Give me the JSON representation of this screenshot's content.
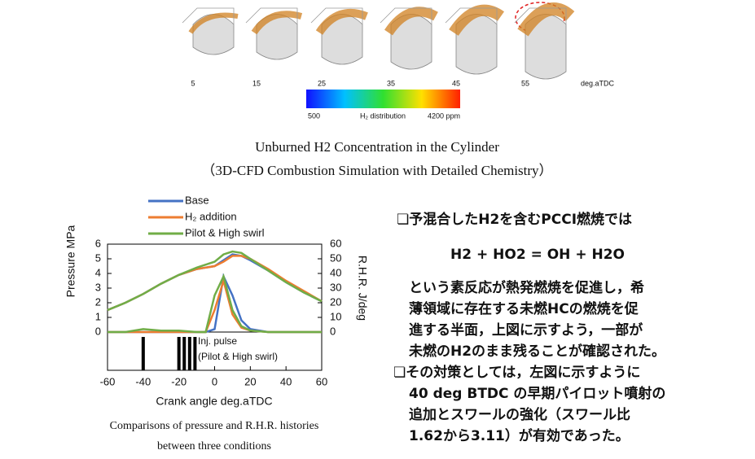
{
  "figure": {
    "crank_angles": [
      5,
      15,
      25,
      35,
      45,
      55
    ],
    "angle_unit": "deg.aTDC",
    "colorbar_min": "500",
    "colorbar_label": "H₂ distribution",
    "colorbar_max": "4200 ppm",
    "caption_line1": "Unburned H2 Concentration in the Cylinder",
    "caption_line2": "（3D-CFD Combustion Simulation with Detailed Chemistry）"
  },
  "chart_data": {
    "type": "line",
    "xlabel": "Crank angle deg.aTDC",
    "ylabel": "Pressure MPa",
    "y2label": "R.H.R. J/deg",
    "x": [
      -60,
      -50,
      -40,
      -30,
      -20,
      -10,
      -5,
      0,
      5,
      10,
      15,
      20,
      30,
      40,
      50,
      60
    ],
    "series": [
      {
        "name": "Base",
        "color": "#4472c4",
        "values": [
          1.5,
          2.0,
          2.6,
          3.3,
          3.9,
          4.3,
          4.4,
          4.5,
          4.9,
          5.3,
          5.2,
          4.9,
          4.2,
          3.4,
          2.7,
          2.1
        ],
        "rhr": [
          0,
          0,
          0,
          0,
          0,
          0,
          0,
          2,
          38,
          25,
          8,
          2,
          0,
          0,
          0,
          0
        ]
      },
      {
        "name": "H₂ addition",
        "color": "#ed7d31",
        "values": [
          1.5,
          2.0,
          2.6,
          3.3,
          3.9,
          4.3,
          4.4,
          4.5,
          4.8,
          5.2,
          5.2,
          5.0,
          4.3,
          3.5,
          2.8,
          2.1
        ],
        "rhr": [
          0,
          0,
          0,
          0,
          0,
          0,
          0,
          15,
          35,
          12,
          3,
          1,
          0,
          0,
          0,
          0
        ]
      },
      {
        "name": "Pilot & High swirl",
        "color": "#70ad47",
        "values": [
          1.5,
          2.0,
          2.6,
          3.3,
          3.9,
          4.4,
          4.6,
          4.8,
          5.3,
          5.5,
          5.4,
          5.0,
          4.2,
          3.4,
          2.7,
          2.1
        ],
        "rhr": [
          0,
          0,
          2,
          1,
          1,
          0,
          0,
          25,
          38,
          15,
          4,
          1,
          0,
          0,
          0,
          0
        ]
      }
    ],
    "xlim": [
      -60,
      60
    ],
    "xticks": [
      -60,
      -40,
      -20,
      0,
      20,
      40,
      60
    ],
    "ylim": [
      0,
      6
    ],
    "yticks": [
      0,
      1,
      2,
      3,
      4,
      5,
      6
    ],
    "y2lim": [
      0,
      60
    ],
    "y2ticks": [
      0,
      10,
      20,
      30,
      40,
      50,
      60
    ],
    "injection": {
      "label_line1": "Inj. pulse",
      "label_line2": "(Pilot & High swirl)",
      "x": [
        -40,
        -20,
        -17,
        -14,
        -11
      ]
    },
    "caption_line1": "Comparisons of pressure and R.H.R. histories",
    "caption_line2": "between three conditions"
  },
  "notes": {
    "bullet1": "❏予混合したH2を含むPCCI燃焼では",
    "equation": "H2 + HO2 = OH + H2O",
    "paragraph": [
      "という素反応が熱発燃焼を促進し，希",
      "薄領域に存在する未燃HCの燃焼を促",
      "進する半面，上図に示すよう，一部が",
      "未燃のH2のまま残ることが確認された。"
    ],
    "bullet2": "❏その対策としては，左図に示すように",
    "paragraph2": [
      "40 deg BTDC の早期パイロット噴射の",
      "追加とスワールの強化（スワール比",
      "1.62から3.11）が有効であった。"
    ]
  }
}
